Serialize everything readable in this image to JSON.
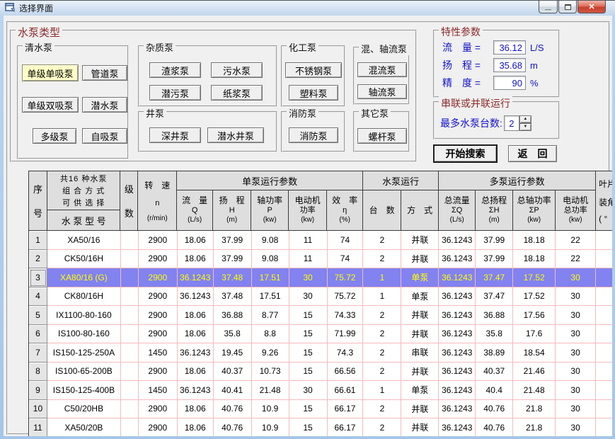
{
  "window": {
    "title": "选择界面",
    "minimize_glyph": "—",
    "close_glyph": "✕"
  },
  "pump_type_section": {
    "title": "水泵类型",
    "groups": [
      {
        "label": "清水泵",
        "buttons": [
          {
            "label": "单级单吸泵",
            "selected": true
          },
          {
            "label": "管道泵",
            "selected": false
          },
          {
            "label": "单级双吸泵",
            "selected": false
          },
          {
            "label": "潜水泵",
            "selected": false
          },
          {
            "label": "多级泵",
            "selected": false
          },
          {
            "label": "自吸泵",
            "selected": false
          }
        ]
      },
      {
        "label": "杂质泵",
        "buttons": [
          {
            "label": "渣浆泵"
          },
          {
            "label": "污水泵"
          },
          {
            "label": "潜污泵"
          },
          {
            "label": "纸浆泵"
          }
        ]
      },
      {
        "label": "井泵",
        "buttons": [
          {
            "label": "深井泵"
          },
          {
            "label": "潜水井泵"
          }
        ]
      },
      {
        "label": "化工泵",
        "buttons": [
          {
            "label": "不锈钢泵"
          },
          {
            "label": "塑料泵"
          }
        ]
      },
      {
        "label": "消防泵",
        "buttons": [
          {
            "label": "消防泵"
          }
        ]
      },
      {
        "label": "混、轴流泵",
        "buttons": [
          {
            "label": "混流泵"
          },
          {
            "label": "轴流泵"
          }
        ]
      },
      {
        "label": "其它泵",
        "buttons": [
          {
            "label": "螺杆泵"
          }
        ]
      }
    ]
  },
  "characteristic_params": {
    "title": "特性参数",
    "fields": [
      {
        "label": "流　量 =",
        "value": "36.12",
        "unit": "L/S"
      },
      {
        "label": "扬　程 =",
        "value": "35.68",
        "unit": "m"
      },
      {
        "label": "精　度 =",
        "value": "90",
        "unit": "%"
      }
    ]
  },
  "series_parallel": {
    "title": "串联或并联运行",
    "spinner_label": "最多水泵台数:",
    "spinner_value": "2",
    "up_glyph": "▲",
    "down_glyph": "▼"
  },
  "actions": {
    "search_label": "开始搜索",
    "back_label": "返　回"
  },
  "colors": {
    "accent_dark_red": "#8B2A2A",
    "label_blue": "#1111CC",
    "selected_row_bg": "#8282F0",
    "selected_row_text": "#FFFF00",
    "grid_pink": "#F4BBBD",
    "selected_button_bg": "#FFFFC6"
  },
  "table": {
    "header": {
      "seq": [
        "序",
        "号"
      ],
      "model_group": [
        "共16 种水泵",
        "组 合 方 式",
        "可 供 选 择"
      ],
      "model": "水 泵 型 号",
      "stages": [
        "级",
        "数"
      ],
      "speed": [
        "转　速",
        "n",
        "(r/min)"
      ],
      "single_group": "单泵运行参数",
      "single_cols": [
        [
          "流　量",
          "Q",
          "(L/s)"
        ],
        [
          "扬　程",
          "H",
          "(m)"
        ],
        [
          "轴功率",
          "P",
          "(kw)"
        ],
        [
          "电动机",
          "功率",
          "(kw)"
        ],
        [
          "效　率",
          "η",
          "(%)"
        ]
      ],
      "run_group": "水泵运行",
      "run_cols": [
        "台　数",
        "方　式"
      ],
      "multi_group": "多泵运行参数",
      "multi_cols": [
        [
          "总流量",
          "ΣQ",
          "(L/s)"
        ],
        [
          "总扬程",
          "ΣH",
          "(m)"
        ],
        [
          "总轴功率",
          "ΣP",
          "(kw)"
        ],
        [
          "电动机",
          "总功率",
          "(kw)"
        ]
      ],
      "blade": [
        "叶片",
        "装角",
        "( °"
      ]
    },
    "selected_row_index": 2,
    "rows": [
      [
        "1",
        "XA50/16",
        "",
        "2900",
        "18.06",
        "37.99",
        "9.08",
        "11",
        "74",
        "2",
        "并联",
        "36.1243",
        "37.99",
        "18.18",
        "22",
        ""
      ],
      [
        "2",
        "CK50/16H",
        "",
        "2900",
        "18.06",
        "37.99",
        "9.08",
        "11",
        "74",
        "2",
        "并联",
        "36.1243",
        "37.99",
        "18.18",
        "22",
        ""
      ],
      [
        "3",
        "XA80/16 (G)",
        "",
        "2900",
        "36.1243",
        "37.48",
        "17.51",
        "30",
        "75.72",
        "1",
        "单泵",
        "36.1243",
        "37.47",
        "17.52",
        "30",
        ""
      ],
      [
        "4",
        "CK80/16H",
        "",
        "2900",
        "36.1243",
        "37.48",
        "17.51",
        "30",
        "75.72",
        "1",
        "单泵",
        "36.1243",
        "37.47",
        "17.52",
        "30",
        ""
      ],
      [
        "5",
        "IX1100-80-160",
        "",
        "2900",
        "18.06",
        "36.88",
        "8.77",
        "15",
        "74.33",
        "2",
        "并联",
        "36.1243",
        "36.88",
        "17.56",
        "30",
        ""
      ],
      [
        "6",
        "IS100-80-160",
        "",
        "2900",
        "18.06",
        "35.8",
        "8.8",
        "15",
        "71.99",
        "2",
        "并联",
        "36.1243",
        "35.8",
        "17.6",
        "30",
        ""
      ],
      [
        "7",
        "IS150-125-250A",
        "",
        "1450",
        "36.1243",
        "19.45",
        "9.26",
        "15",
        "74.3",
        "2",
        "串联",
        "36.1243",
        "38.89",
        "18.54",
        "30",
        ""
      ],
      [
        "8",
        "IS100-65-200B",
        "",
        "2900",
        "18.06",
        "40.37",
        "10.73",
        "15",
        "66.56",
        "2",
        "并联",
        "36.1243",
        "40.37",
        "21.46",
        "30",
        ""
      ],
      [
        "9",
        "IS150-125-400B",
        "",
        "1450",
        "36.1243",
        "40.41",
        "21.48",
        "30",
        "66.61",
        "1",
        "单泵",
        "36.1243",
        "40.4",
        "21.48",
        "30",
        ""
      ],
      [
        "10",
        "C50/20HB",
        "",
        "2900",
        "18.06",
        "40.76",
        "10.9",
        "15",
        "66.17",
        "2",
        "并联",
        "36.1243",
        "40.76",
        "21.8",
        "30",
        ""
      ],
      [
        "11",
        "XA50/20B",
        "",
        "2900",
        "18.06",
        "40.76",
        "10.9",
        "15",
        "66.17",
        "2",
        "并联",
        "36.1243",
        "40.76",
        "21.8",
        "30",
        ""
      ]
    ]
  }
}
